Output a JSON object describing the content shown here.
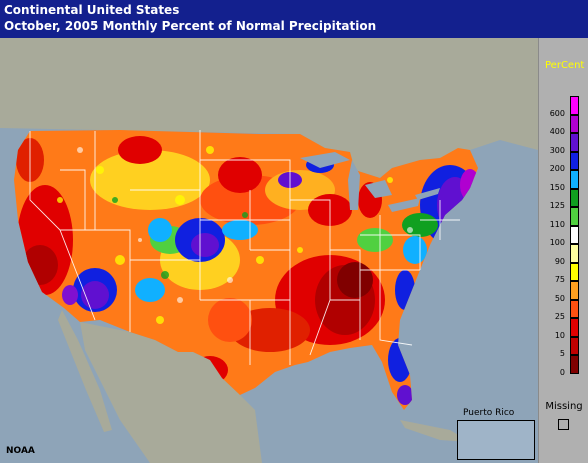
{
  "title": {
    "line1": "Continental United States",
    "line2": "October, 2005 Monthly Percent of Normal Precipitation"
  },
  "legend": {
    "title": "PerCent",
    "entries": [
      {
        "label": "600",
        "color": "#ff00ff"
      },
      {
        "label": "400",
        "color": "#b000d0"
      },
      {
        "label": "300",
        "color": "#6010d0"
      },
      {
        "label": "200",
        "color": "#1020e0"
      },
      {
        "label": "150",
        "color": "#10b0ff"
      },
      {
        "label": "125",
        "color": "#10a020"
      },
      {
        "label": "110",
        "color": "#50d040"
      },
      {
        "label": "100",
        "color": "#ffffff"
      },
      {
        "label": "90",
        "color": "#ffffa0"
      },
      {
        "label": "75",
        "color": "#ffff00"
      },
      {
        "label": "50",
        "color": "#ffa020"
      },
      {
        "label": "25",
        "color": "#ff5010"
      },
      {
        "label": "10",
        "color": "#e00000"
      },
      {
        "label": "5",
        "color": "#c00000"
      },
      {
        "label": "0",
        "color": "#800000"
      }
    ],
    "missing_label": "Missing"
  },
  "inset": {
    "label": "Puerto Rico"
  },
  "credit": "NOAA",
  "colors": {
    "title_bar": "#13208e",
    "land_neighbor": "#a8aa9a",
    "water": "#8ea4b8"
  }
}
